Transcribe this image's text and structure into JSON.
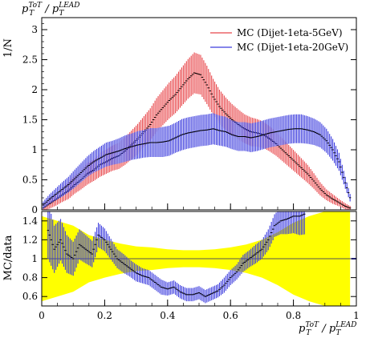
{
  "colors": {
    "mc_5gev": "#e8464a",
    "mc_20gev": "#3c3cde",
    "band": "#ffff00",
    "frame": "#000000"
  },
  "chart_data": [
    {
      "name": "main",
      "type": "line",
      "title_text": "p_T^ToT / p_T^LEAD",
      "ylabel": "1/N",
      "xlim": [
        0,
        1
      ],
      "ylim": [
        0,
        3.2
      ],
      "yticks": [
        0,
        0.5,
        1,
        1.5,
        2,
        2.5,
        3
      ],
      "ytick_labels": [
        "0",
        "0.5",
        "1",
        "1.5",
        "2",
        "2.5",
        "3"
      ],
      "legend_position": "top-right",
      "series": [
        {
          "name": "MC (Dijet-1eta-5GeV)",
          "color": "#e8464a",
          "x": [
            0.0,
            0.02,
            0.04,
            0.06,
            0.08,
            0.1,
            0.12,
            0.14,
            0.16,
            0.18,
            0.2,
            0.22,
            0.24,
            0.26,
            0.28,
            0.3,
            0.32,
            0.34,
            0.36,
            0.38,
            0.4,
            0.42,
            0.44,
            0.46,
            0.48,
            0.5,
            0.52,
            0.54,
            0.56,
            0.58,
            0.6,
            0.62,
            0.64,
            0.66,
            0.68,
            0.7,
            0.72,
            0.74,
            0.76,
            0.78,
            0.8,
            0.82,
            0.84,
            0.86,
            0.88,
            0.9,
            0.92,
            0.94,
            0.96,
            0.98
          ],
          "y": [
            0.03,
            0.1,
            0.17,
            0.25,
            0.32,
            0.42,
            0.5,
            0.6,
            0.66,
            0.75,
            0.8,
            0.86,
            0.9,
            0.98,
            1.08,
            1.18,
            1.3,
            1.42,
            1.58,
            1.7,
            1.82,
            1.92,
            2.05,
            2.18,
            2.28,
            2.25,
            2.08,
            1.88,
            1.72,
            1.6,
            1.5,
            1.42,
            1.35,
            1.3,
            1.28,
            1.25,
            1.18,
            1.1,
            1.0,
            0.9,
            0.8,
            0.7,
            0.6,
            0.48,
            0.35,
            0.25,
            0.18,
            0.12,
            0.06,
            0.02
          ],
          "err": [
            0.05,
            0.08,
            0.1,
            0.12,
            0.14,
            0.15,
            0.16,
            0.18,
            0.18,
            0.2,
            0.2,
            0.21,
            0.22,
            0.23,
            0.24,
            0.25,
            0.26,
            0.27,
            0.28,
            0.29,
            0.3,
            0.31,
            0.32,
            0.33,
            0.34,
            0.33,
            0.32,
            0.3,
            0.28,
            0.27,
            0.26,
            0.25,
            0.24,
            0.24,
            0.23,
            0.22,
            0.21,
            0.2,
            0.19,
            0.18,
            0.17,
            0.16,
            0.15,
            0.13,
            0.11,
            0.09,
            0.08,
            0.06,
            0.05,
            0.03
          ]
        },
        {
          "name": "MC (Dijet-1eta-20GeV)",
          "color": "#3c3cde",
          "x": [
            0.0,
            0.02,
            0.04,
            0.06,
            0.08,
            0.1,
            0.12,
            0.14,
            0.16,
            0.18,
            0.2,
            0.22,
            0.24,
            0.26,
            0.28,
            0.3,
            0.32,
            0.34,
            0.36,
            0.38,
            0.4,
            0.42,
            0.44,
            0.46,
            0.48,
            0.5,
            0.52,
            0.54,
            0.56,
            0.58,
            0.6,
            0.62,
            0.64,
            0.66,
            0.68,
            0.7,
            0.72,
            0.74,
            0.76,
            0.78,
            0.8,
            0.82,
            0.84,
            0.86,
            0.88,
            0.9,
            0.92,
            0.94,
            0.96,
            0.98
          ],
          "y": [
            0.08,
            0.18,
            0.26,
            0.34,
            0.42,
            0.52,
            0.62,
            0.72,
            0.8,
            0.86,
            0.92,
            0.95,
            0.98,
            1.02,
            1.05,
            1.08,
            1.1,
            1.12,
            1.12,
            1.13,
            1.15,
            1.2,
            1.25,
            1.28,
            1.3,
            1.32,
            1.33,
            1.35,
            1.32,
            1.3,
            1.25,
            1.22,
            1.22,
            1.2,
            1.22,
            1.25,
            1.28,
            1.3,
            1.32,
            1.34,
            1.35,
            1.35,
            1.33,
            1.3,
            1.25,
            1.15,
            1.0,
            0.8,
            0.45,
            0.12
          ],
          "err": [
            0.06,
            0.08,
            0.1,
            0.12,
            0.13,
            0.15,
            0.16,
            0.17,
            0.18,
            0.19,
            0.2,
            0.2,
            0.21,
            0.22,
            0.22,
            0.23,
            0.23,
            0.24,
            0.24,
            0.25,
            0.25,
            0.25,
            0.26,
            0.26,
            0.26,
            0.26,
            0.26,
            0.26,
            0.25,
            0.25,
            0.24,
            0.24,
            0.24,
            0.24,
            0.24,
            0.24,
            0.24,
            0.24,
            0.24,
            0.24,
            0.24,
            0.24,
            0.23,
            0.22,
            0.21,
            0.2,
            0.18,
            0.15,
            0.1,
            0.05
          ]
        }
      ]
    },
    {
      "name": "ratio",
      "type": "line",
      "ylabel": "MC/data",
      "xlabel": "p_T^ToT / p_T^LEAD",
      "xlim": [
        0,
        1
      ],
      "ylim": [
        0.5,
        1.5
      ],
      "yticks": [
        0.6,
        0.8,
        1,
        1.2,
        1.4
      ],
      "ytick_labels": [
        "0.6",
        "0.8",
        "1",
        "1.2",
        "1.4"
      ],
      "xticks": [
        0,
        0.2,
        0.4,
        0.6,
        0.8,
        1
      ],
      "xtick_labels": [
        "0",
        "0.2",
        "0.4",
        "0.6",
        "0.8",
        "1"
      ],
      "band": {
        "color": "#ffff00",
        "x": [
          0.0,
          0.05,
          0.1,
          0.15,
          0.2,
          0.25,
          0.3,
          0.35,
          0.4,
          0.45,
          0.5,
          0.55,
          0.6,
          0.65,
          0.7,
          0.75,
          0.8,
          0.85,
          0.9,
          0.95,
          0.98
        ],
        "lo": [
          0.55,
          0.6,
          0.65,
          0.75,
          0.8,
          0.84,
          0.87,
          0.88,
          0.9,
          0.91,
          0.91,
          0.9,
          0.88,
          0.85,
          0.8,
          0.72,
          0.62,
          0.55,
          0.5,
          0.5,
          0.5
        ],
        "hi": [
          1.45,
          1.4,
          1.35,
          1.25,
          1.2,
          1.16,
          1.13,
          1.12,
          1.1,
          1.09,
          1.09,
          1.1,
          1.12,
          1.15,
          1.2,
          1.28,
          1.38,
          1.45,
          1.5,
          1.5,
          1.5
        ]
      },
      "series": [
        {
          "name": "MC (Dijet-1eta-20GeV)",
          "color": "#3c3cde",
          "x": [
            0.02,
            0.04,
            0.06,
            0.08,
            0.1,
            0.12,
            0.14,
            0.16,
            0.18,
            0.2,
            0.22,
            0.24,
            0.26,
            0.28,
            0.3,
            0.32,
            0.34,
            0.36,
            0.38,
            0.4,
            0.42,
            0.44,
            0.46,
            0.48,
            0.5,
            0.52,
            0.54,
            0.56,
            0.58,
            0.6,
            0.62,
            0.64,
            0.66,
            0.68,
            0.7,
            0.72,
            0.74,
            0.76,
            0.78,
            0.8,
            0.82,
            0.84
          ],
          "y": [
            1.3,
            1.1,
            1.2,
            1.05,
            1.0,
            1.15,
            1.1,
            1.05,
            1.25,
            1.2,
            1.1,
            1.0,
            0.95,
            0.9,
            0.85,
            0.82,
            0.8,
            0.75,
            0.7,
            0.68,
            0.7,
            0.65,
            0.62,
            0.62,
            0.64,
            0.6,
            0.63,
            0.66,
            0.72,
            0.8,
            0.86,
            0.95,
            1.0,
            1.05,
            1.1,
            1.2,
            1.35,
            1.4,
            1.42,
            1.45,
            1.45,
            1.48
          ],
          "err": [
            0.3,
            0.25,
            0.22,
            0.2,
            0.18,
            0.16,
            0.15,
            0.14,
            0.13,
            0.12,
            0.11,
            0.1,
            0.1,
            0.09,
            0.09,
            0.08,
            0.08,
            0.08,
            0.08,
            0.07,
            0.07,
            0.07,
            0.07,
            0.07,
            0.07,
            0.07,
            0.07,
            0.07,
            0.08,
            0.08,
            0.08,
            0.09,
            0.09,
            0.1,
            0.1,
            0.11,
            0.12,
            0.14,
            0.16,
            0.18,
            0.2,
            0.22
          ]
        }
      ]
    }
  ],
  "labels": {
    "top_title_base": "p",
    "top_title_sup1": "ToT",
    "top_title_sub1": "T",
    "top_title_slash": " / p",
    "top_title_sup2": "LEAD",
    "top_title_sub2": "T",
    "y_main": "1/N",
    "y_ratio": "MC/data",
    "legend_1": "MC (Dijet-1eta-5GeV)",
    "legend_2": "MC (Dijet-1eta-20GeV)"
  }
}
